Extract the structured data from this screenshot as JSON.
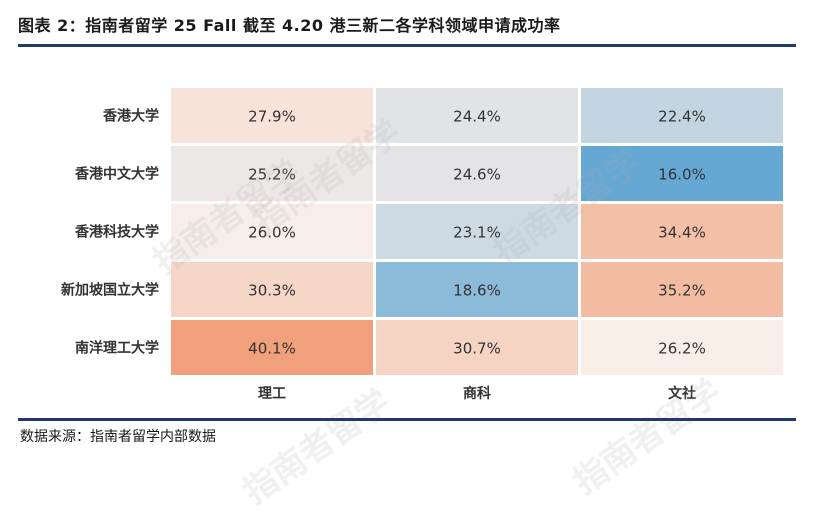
{
  "title": "图表 2：指南者留学 25 Fall 截至 4.20 港三新二各学科领域申请成功率",
  "source": "数据来源：指南者留学内部数据",
  "watermark": "指南者留学",
  "colors": {
    "rule": "#1f3a6b",
    "low": "#66a8d4",
    "mid": "#f8eee9",
    "high": "#f0a07a"
  },
  "chart_data": {
    "type": "heatmap",
    "rows": [
      "香港大学",
      "香港中文大学",
      "香港科技大学",
      "新加坡国立大学",
      "南洋理工大学"
    ],
    "columns": [
      "理工",
      "商科",
      "文社"
    ],
    "values": [
      [
        27.9,
        24.4,
        22.4
      ],
      [
        25.2,
        24.6,
        16.0
      ],
      [
        26.0,
        23.1,
        34.4
      ],
      [
        30.3,
        18.6,
        35.2
      ],
      [
        40.1,
        30.7,
        26.2
      ]
    ],
    "labels": [
      [
        "27.9%",
        "24.4%",
        "22.4%"
      ],
      [
        "25.2%",
        "24.6%",
        "16.0%"
      ],
      [
        "26.0%",
        "23.1%",
        "34.4%"
      ],
      [
        "30.3%",
        "18.6%",
        "35.2%"
      ],
      [
        "40.1%",
        "30.7%",
        "26.2%"
      ]
    ]
  }
}
